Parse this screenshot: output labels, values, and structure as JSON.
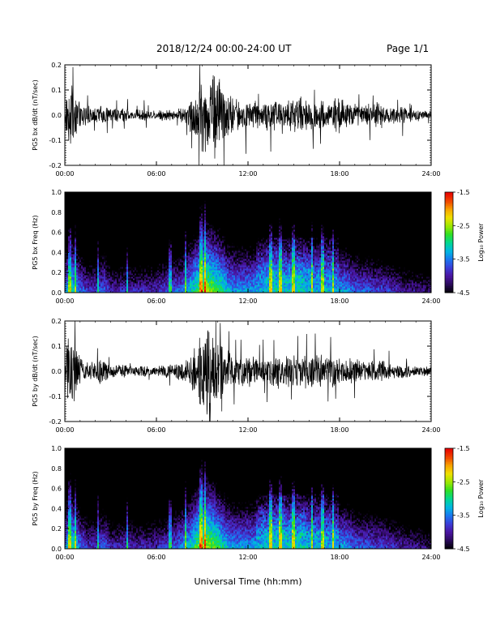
{
  "header": {
    "title": "2018/12/24  00:00-24:00 UT",
    "page": "Page 1/1"
  },
  "xlabel": "Universal Time (hh:mm)",
  "colorbar": {
    "label": "Log₁₀ Power",
    "ticks": [
      "-1.5",
      "-2.5",
      "-3.5",
      "-4.5"
    ],
    "colors": [
      "#000000",
      "#2a0a5a",
      "#4a14a0",
      "#3c3cd8",
      "#1878f0",
      "#00b8e0",
      "#00d890",
      "#30e020",
      "#a0e800",
      "#f0e000",
      "#f8a000",
      "#f04000",
      "#e80000"
    ]
  },
  "chart_data": [
    {
      "type": "line",
      "ylabel": "PG5 bx dB/dt (nT/sec)",
      "xticks": [
        "00:00",
        "06:00",
        "12:00",
        "18:00",
        "24:00"
      ],
      "yticks": [
        "-0.2",
        "-0.1",
        "0.0",
        "0.1",
        "0.2"
      ],
      "xlim": [
        0,
        24
      ],
      "ylim": [
        -0.2,
        0.2
      ],
      "color": "#000000",
      "series": [
        {
          "x": [
            0,
            0.5,
            1,
            1.5,
            2,
            2.5,
            3,
            3.5,
            4,
            4.5,
            5,
            5.5,
            6,
            6.5,
            7,
            7.5,
            8,
            8.5,
            9,
            9.5,
            10,
            10.5,
            11,
            11.5,
            12,
            12.5,
            13,
            13.5,
            14,
            14.5,
            15,
            15.5,
            16,
            16.5,
            17,
            17.5,
            18,
            18.5,
            19,
            19.5,
            20,
            20.5,
            21,
            21.5,
            22,
            22.5,
            23,
            23.5,
            24
          ],
          "amplitude": [
            0.08,
            0.15,
            0.05,
            0.04,
            0.03,
            0.06,
            0.03,
            0.03,
            0.03,
            0.02,
            0.03,
            0.02,
            0.02,
            0.03,
            0.02,
            0.03,
            0.05,
            0.1,
            0.16,
            0.2,
            0.2,
            0.12,
            0.08,
            0.07,
            0.07,
            0.06,
            0.06,
            0.07,
            0.08,
            0.07,
            0.08,
            0.08,
            0.07,
            0.07,
            0.06,
            0.06,
            0.08,
            0.06,
            0.05,
            0.05,
            0.05,
            0.06,
            0.05,
            0.04,
            0.04,
            0.03,
            0.03,
            0.02,
            0.02
          ]
        }
      ]
    },
    {
      "type": "heatmap",
      "ylabel": "PG5 bx Freq (Hz)",
      "xticks": [
        "00:00",
        "06:00",
        "12:00",
        "18:00",
        "24:00"
      ],
      "yticks": [
        "0.0",
        "0.2",
        "0.4",
        "0.6",
        "0.8",
        "1.0"
      ],
      "xlim": [
        0,
        24
      ],
      "ylim": [
        0,
        1
      ],
      "zlim": [
        -4.5,
        -1.5
      ],
      "zlabel": "Log₁₀ Power",
      "low_freq_power": [
        -3.4,
        -3.0,
        -3.5,
        -3.8,
        -3.8,
        -3.5,
        -3.9,
        -3.9,
        -3.8,
        -3.9,
        -3.9,
        -3.9,
        -3.8,
        -3.7,
        -3.6,
        -3.5,
        -3.1,
        -2.8,
        -2.4,
        -2.6,
        -2.8,
        -3.2,
        -3.3,
        -3.3,
        -3.3,
        -3.2,
        -3.1,
        -3.0,
        -3.1,
        -3.1,
        -3.0,
        -3.1,
        -3.2,
        -3.2,
        -3.2,
        -3.3,
        -3.3,
        -3.5,
        -3.6,
        -3.6,
        -3.7,
        -3.7,
        -3.8,
        -3.9,
        -4.0,
        -4.0,
        -4.1,
        -4.2
      ]
    },
    {
      "type": "line",
      "ylabel": "PG5 by dB/dt (nT/sec)",
      "xticks": [
        "00:00",
        "06:00",
        "12:00",
        "18:00",
        "24:00"
      ],
      "yticks": [
        "-0.2",
        "-0.1",
        "0.0",
        "0.1",
        "0.2"
      ],
      "xlim": [
        0,
        24
      ],
      "ylim": [
        -0.2,
        0.2
      ],
      "color": "#000000",
      "series": [
        {
          "x": [
            0,
            0.5,
            1,
            1.5,
            2,
            2.5,
            3,
            3.5,
            4,
            4.5,
            5,
            5.5,
            6,
            6.5,
            7,
            7.5,
            8,
            8.5,
            9,
            9.5,
            10,
            10.5,
            11,
            11.5,
            12,
            12.5,
            13,
            13.5,
            14,
            14.5,
            15,
            15.5,
            16,
            16.5,
            17,
            17.5,
            18,
            18.5,
            19,
            19.5,
            20,
            20.5,
            21,
            21.5,
            22,
            22.5,
            23,
            23.5,
            24
          ],
          "amplitude": [
            0.12,
            0.2,
            0.06,
            0.04,
            0.04,
            0.07,
            0.03,
            0.03,
            0.03,
            0.02,
            0.03,
            0.02,
            0.02,
            0.03,
            0.03,
            0.04,
            0.06,
            0.1,
            0.18,
            0.2,
            0.15,
            0.1,
            0.07,
            0.07,
            0.07,
            0.06,
            0.06,
            0.07,
            0.08,
            0.07,
            0.07,
            0.08,
            0.07,
            0.07,
            0.07,
            0.08,
            0.06,
            0.06,
            0.05,
            0.05,
            0.05,
            0.05,
            0.04,
            0.04,
            0.03,
            0.03,
            0.02,
            0.02,
            0.02
          ]
        }
      ]
    },
    {
      "type": "heatmap",
      "ylabel": "PG5 by Freq (Hz)",
      "xticks": [
        "00:00",
        "06:00",
        "12:00",
        "18:00",
        "24:00"
      ],
      "yticks": [
        "0.0",
        "0.2",
        "0.4",
        "0.6",
        "0.8",
        "1.0"
      ],
      "xlim": [
        0,
        24
      ],
      "ylim": [
        0,
        1
      ],
      "zlim": [
        -4.5,
        -1.5
      ],
      "zlabel": "Log₁₀ Power",
      "low_freq_power": [
        -3.3,
        -2.9,
        -3.5,
        -3.8,
        -3.8,
        -3.5,
        -3.9,
        -3.9,
        -3.8,
        -3.9,
        -3.9,
        -3.9,
        -3.8,
        -3.7,
        -3.6,
        -3.4,
        -3.1,
        -2.7,
        -2.4,
        -2.6,
        -2.9,
        -3.2,
        -3.3,
        -3.3,
        -3.3,
        -3.2,
        -3.1,
        -3.0,
        -3.0,
        -3.1,
        -3.0,
        -3.1,
        -3.2,
        -3.2,
        -3.2,
        -3.3,
        -3.3,
        -3.5,
        -3.6,
        -3.6,
        -3.7,
        -3.7,
        -3.8,
        -3.9,
        -4.0,
        -4.0,
        -4.1,
        -4.2
      ]
    }
  ]
}
